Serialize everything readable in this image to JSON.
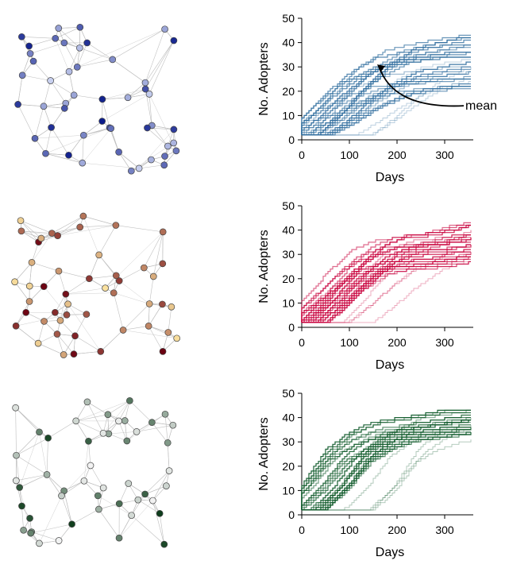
{
  "chart_data": [
    {
      "type": "line",
      "xlabel": "Days",
      "ylabel": "No. Adopters",
      "xlim": [
        0,
        360
      ],
      "ylim": [
        0,
        50
      ],
      "xticks": [
        0,
        100,
        200,
        300
      ],
      "yticks": [
        0,
        10,
        20,
        30,
        40,
        50
      ],
      "color": "#2f6d9e",
      "annotation": {
        "text": "mean",
        "target_x": 160,
        "target_y": 31
      },
      "runs": 30,
      "start_y": 2,
      "end_y_range": [
        20,
        46
      ],
      "mean_curve": {
        "x": [
          0,
          50,
          100,
          150,
          200,
          250,
          300,
          355
        ],
        "y": [
          2,
          11,
          22,
          31,
          37,
          39.5,
          41.5,
          43
        ]
      },
      "network": {
        "node_color_light": "#cdd5f2",
        "node_color_dark": "#0a1a8a"
      }
    },
    {
      "type": "line",
      "xlabel": "Days",
      "ylabel": "No. Adopters",
      "xlim": [
        0,
        360
      ],
      "ylim": [
        0,
        50
      ],
      "xticks": [
        0,
        100,
        200,
        300
      ],
      "yticks": [
        0,
        10,
        20,
        30,
        40,
        50
      ],
      "color": "#c8003c",
      "runs": 30,
      "start_y": 2,
      "end_y_range": [
        27,
        44
      ],
      "mean_curve": {
        "x": [
          0,
          50,
          100,
          150,
          200,
          250,
          300,
          355
        ],
        "y": [
          2,
          12,
          23,
          32,
          36,
          37,
          38.5,
          42
        ]
      },
      "network": {
        "node_color_light": "#fbe3a0",
        "node_color_dark": "#6a0010"
      }
    },
    {
      "type": "line",
      "xlabel": "Days",
      "ylabel": "No. Adopters",
      "xlim": [
        0,
        360
      ],
      "ylim": [
        0,
        50
      ],
      "xticks": [
        0,
        100,
        200,
        300
      ],
      "yticks": [
        0,
        10,
        20,
        30,
        40,
        50
      ],
      "color": "#0f5a2a",
      "runs": 30,
      "start_y": 2,
      "end_y_range": [
        34,
        45
      ],
      "mean_curve": {
        "x": [
          0,
          50,
          100,
          150,
          200,
          250,
          300,
          355
        ],
        "y": [
          2,
          12,
          26,
          33,
          37,
          38.5,
          40,
          42
        ]
      },
      "network": {
        "node_color_light": "#f4f4f4",
        "node_color_dark": "#0a3a18"
      }
    }
  ]
}
